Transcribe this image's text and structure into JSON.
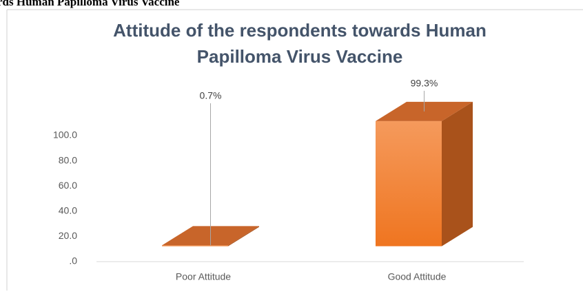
{
  "heading": "rds Human Papilloma Virus Vaccine",
  "chart_data": {
    "type": "bar3d",
    "title": [
      "Attitude of the respondents towards Human",
      "Papilloma Virus Vaccine"
    ],
    "categories": [
      "Poor Attitude",
      "Good Attitude"
    ],
    "values": [
      0.7,
      99.3
    ],
    "value_labels": [
      "0.7%",
      "99.3%"
    ],
    "color": "#ef7a2a",
    "ylim": [
      0,
      100
    ],
    "yticks": [
      {
        "value": 0,
        "label": ".0"
      },
      {
        "value": 20,
        "label": "20.0"
      },
      {
        "value": 40,
        "label": "40.0"
      },
      {
        "value": 60,
        "label": "60.0"
      },
      {
        "value": 80,
        "label": "80.0"
      },
      {
        "value": 100,
        "label": "100.0"
      }
    ],
    "grid": false
  }
}
